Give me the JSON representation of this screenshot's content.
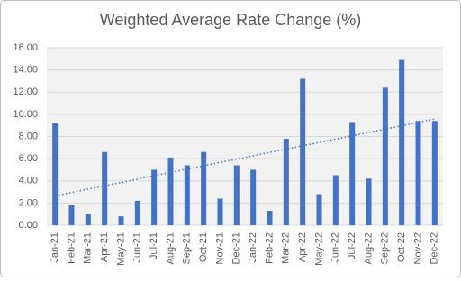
{
  "chart_data": {
    "type": "bar",
    "title": "Weighted Average Rate Change (%)",
    "categories": [
      "Jan-21",
      "Feb-21",
      "Mar-21",
      "Apr-21",
      "May-21",
      "Jun-21",
      "Jul-21",
      "Aug-21",
      "Sep-21",
      "Oct-21",
      "Nov-21",
      "Dec-21",
      "Jan-22",
      "Feb-22",
      "Mar-22",
      "Apr-22",
      "May-22",
      "Jun-22",
      "Jul-22",
      "Aug-22",
      "Sep-22",
      "Oct-22",
      "Nov-22",
      "Dec-22"
    ],
    "values": [
      9.2,
      1.8,
      1.0,
      6.6,
      0.8,
      2.2,
      5.0,
      6.1,
      5.4,
      6.6,
      2.4,
      5.4,
      5.0,
      1.3,
      7.8,
      13.2,
      2.8,
      4.5,
      9.3,
      4.2,
      12.4,
      14.9,
      9.4,
      9.4
    ],
    "color": "#4472c4",
    "trendline": "linear",
    "ylim": [
      0,
      16
    ],
    "yticks": [
      {
        "value": 0,
        "label": "0.00"
      },
      {
        "value": 2,
        "label": "2.00"
      },
      {
        "value": 4,
        "label": "4.00"
      },
      {
        "value": 6,
        "label": "6.00"
      },
      {
        "value": 8,
        "label": "8.00"
      },
      {
        "value": 10,
        "label": "10.00"
      },
      {
        "value": 12,
        "label": "12.00"
      },
      {
        "value": 14,
        "label": "14.00"
      },
      {
        "value": 16,
        "label": "16.00"
      }
    ],
    "grid": true
  }
}
